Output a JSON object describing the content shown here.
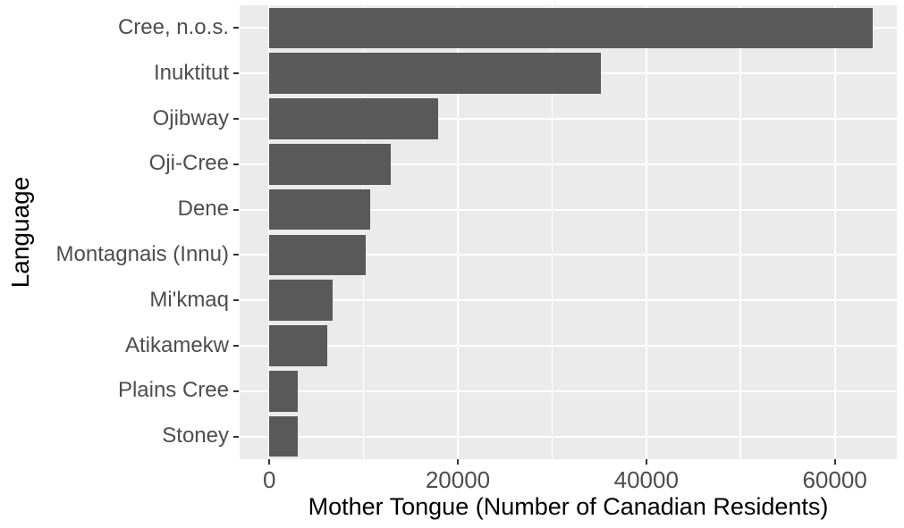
{
  "chart_data": {
    "type": "bar",
    "orientation": "horizontal",
    "title": "",
    "xlabel": "Mother Tongue (Number of Canadian Residents)",
    "ylabel": "Language",
    "categories": [
      "Cree, n.o.s.",
      "Inuktitut",
      "Ojibway",
      "Oji-Cree",
      "Dene",
      "Montagnais (Innu)",
      "Mi'kmaq",
      "Atikamekw",
      "Plains Cree",
      "Stoney"
    ],
    "values": [
      64050,
      35215,
      17885,
      12855,
      10700,
      10230,
      6690,
      6150,
      3065,
      3025
    ],
    "x_major_ticks": [
      0,
      20000,
      40000,
      60000
    ],
    "x_tick_labels": [
      "0",
      "20000",
      "40000",
      "60000"
    ],
    "x_minor_ticks": [
      10000,
      30000,
      50000
    ],
    "x_domain": [
      -3150,
      66584
    ],
    "bar_width_fraction": 0.9,
    "grid": "white major and minor vertical lines, white horizontal line per category, on gray panel",
    "legend": "none",
    "style": {
      "bar_fill": "#595959",
      "panel_background": "#EBEBEB",
      "gridline_color": "#FFFFFF",
      "tick_label_color": "#4D4D4D",
      "axis_title_color": "#000000",
      "tick_mark_color": "#333333",
      "figure_background": "#FFFFFF"
    }
  }
}
